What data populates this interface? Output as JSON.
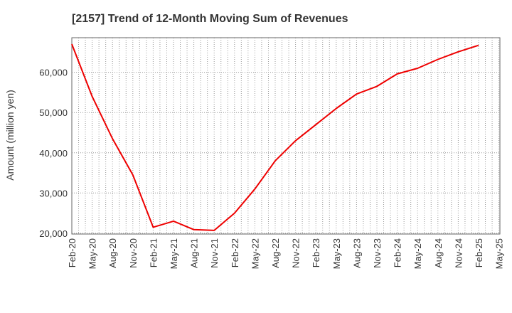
{
  "chart_data": {
    "type": "line",
    "title": "[2157]  Trend of 12-Month Moving Sum of Revenues",
    "xlabel": "",
    "ylabel": "Amount (million yen)",
    "ylim": [
      19800,
      68600
    ],
    "yticks": [
      20000,
      30000,
      40000,
      50000,
      60000
    ],
    "ytick_labels": [
      "20,000",
      "30,000",
      "40,000",
      "50,000",
      "60,000"
    ],
    "xtick_labels": [
      "Feb-20",
      "May-20",
      "Aug-20",
      "Nov-20",
      "Feb-21",
      "May-21",
      "Aug-21",
      "Nov-21",
      "Feb-22",
      "May-22",
      "Aug-22",
      "Nov-22",
      "Feb-23",
      "May-23",
      "Aug-23",
      "Nov-23",
      "Feb-24",
      "May-24",
      "Aug-24",
      "Nov-24",
      "Feb-25",
      "May-25"
    ],
    "grid": true,
    "line_color": "#ee0000",
    "series": [
      {
        "x": [
          "Feb-20",
          "May-20",
          "Aug-20",
          "Nov-20",
          "Feb-21",
          "May-21",
          "Aug-21",
          "Nov-21",
          "Feb-22",
          "May-22",
          "Aug-22",
          "Nov-22",
          "Feb-23",
          "May-23",
          "Aug-23",
          "Nov-23",
          "Feb-24",
          "May-24",
          "Aug-24",
          "Nov-24",
          "Feb-25"
        ],
        "values": [
          67000,
          54000,
          43500,
          34500,
          21500,
          23000,
          20900,
          20700,
          25000,
          31000,
          38000,
          43000,
          47000,
          51000,
          54600,
          56500,
          59600,
          61000,
          63200,
          65100,
          66700
        ]
      }
    ]
  }
}
